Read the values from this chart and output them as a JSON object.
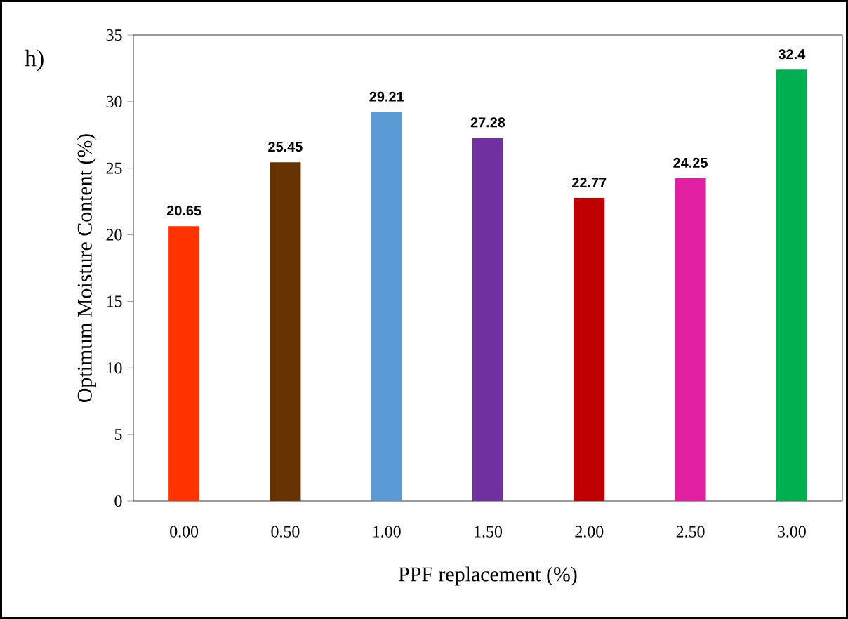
{
  "chart_data": {
    "type": "bar",
    "title": "h)",
    "xlabel": "PPF replacement (%)",
    "ylabel": "Optimum Moisture Content (%)",
    "categories": [
      "0.00",
      "0.50",
      "1.00",
      "1.50",
      "2.00",
      "2.50",
      "3.00"
    ],
    "values": [
      20.65,
      25.45,
      29.21,
      27.28,
      22.77,
      24.25,
      32.4
    ],
    "colors": [
      "#ff3300",
      "#663300",
      "#5b9bd5",
      "#7030a0",
      "#c00000",
      "#e020a0",
      "#00b050"
    ],
    "ylim": [
      0,
      35
    ],
    "yticks": [
      0,
      5,
      10,
      15,
      20,
      25,
      30,
      35
    ],
    "data_labels": true,
    "grid": false
  }
}
